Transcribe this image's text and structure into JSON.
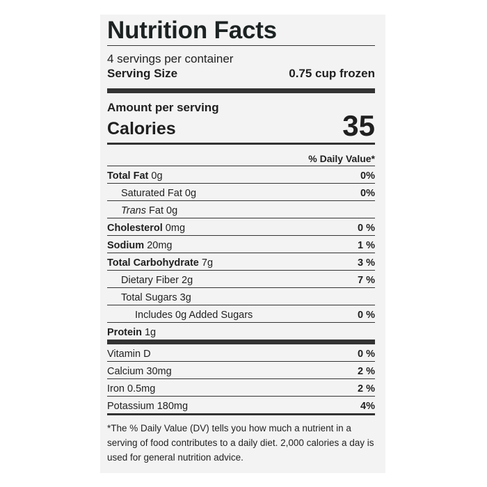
{
  "title": "Nutrition Facts",
  "servings_per_container": "4 servings per container",
  "serving_size": {
    "label": "Serving Size",
    "value": "0.75 cup frozen"
  },
  "amount_per_serving": "Amount per serving",
  "calories": {
    "label": "Calories",
    "value": "35"
  },
  "daily_value_header": "% Daily Value*",
  "nutrients": [
    {
      "name": "Total Fat",
      "amount": "0g",
      "dv": "0%"
    },
    {
      "name": "Saturated Fat",
      "amount": "0g",
      "dv": "0%"
    },
    {
      "name": "Trans",
      "suffix": "Fat",
      "amount": "0g",
      "dv": ""
    },
    {
      "name": "Cholesterol",
      "amount": "0mg",
      "dv": "0 %"
    },
    {
      "name": "Sodium",
      "amount": "20mg",
      "dv": "1 %"
    },
    {
      "name": "Total Carbohydrate",
      "amount": "7g",
      "dv": "3 %"
    },
    {
      "name": "Dietary Fiber",
      "amount": "2g",
      "dv": "7 %"
    },
    {
      "name": "Total Sugars",
      "amount": "3g",
      "dv": ""
    },
    {
      "name": "Includes 0g Added Sugars",
      "amount": "",
      "dv": "0 %"
    },
    {
      "name": "Protein",
      "amount": "1g",
      "dv": ""
    }
  ],
  "vitamins": [
    {
      "name": "Vitamin D",
      "dv": "0 %"
    },
    {
      "name": "Calcium 30mg",
      "dv": "2 %"
    },
    {
      "name": "Iron 0.5mg",
      "dv": "2 %"
    },
    {
      "name": "Potassium 180mg",
      "dv": "4%"
    }
  ],
  "footnote": "*The % Daily Value (DV) tells you how much a nutrient in a serving of food contributes to a daily diet. 2,000 calories a day is used for general nutrition advice."
}
